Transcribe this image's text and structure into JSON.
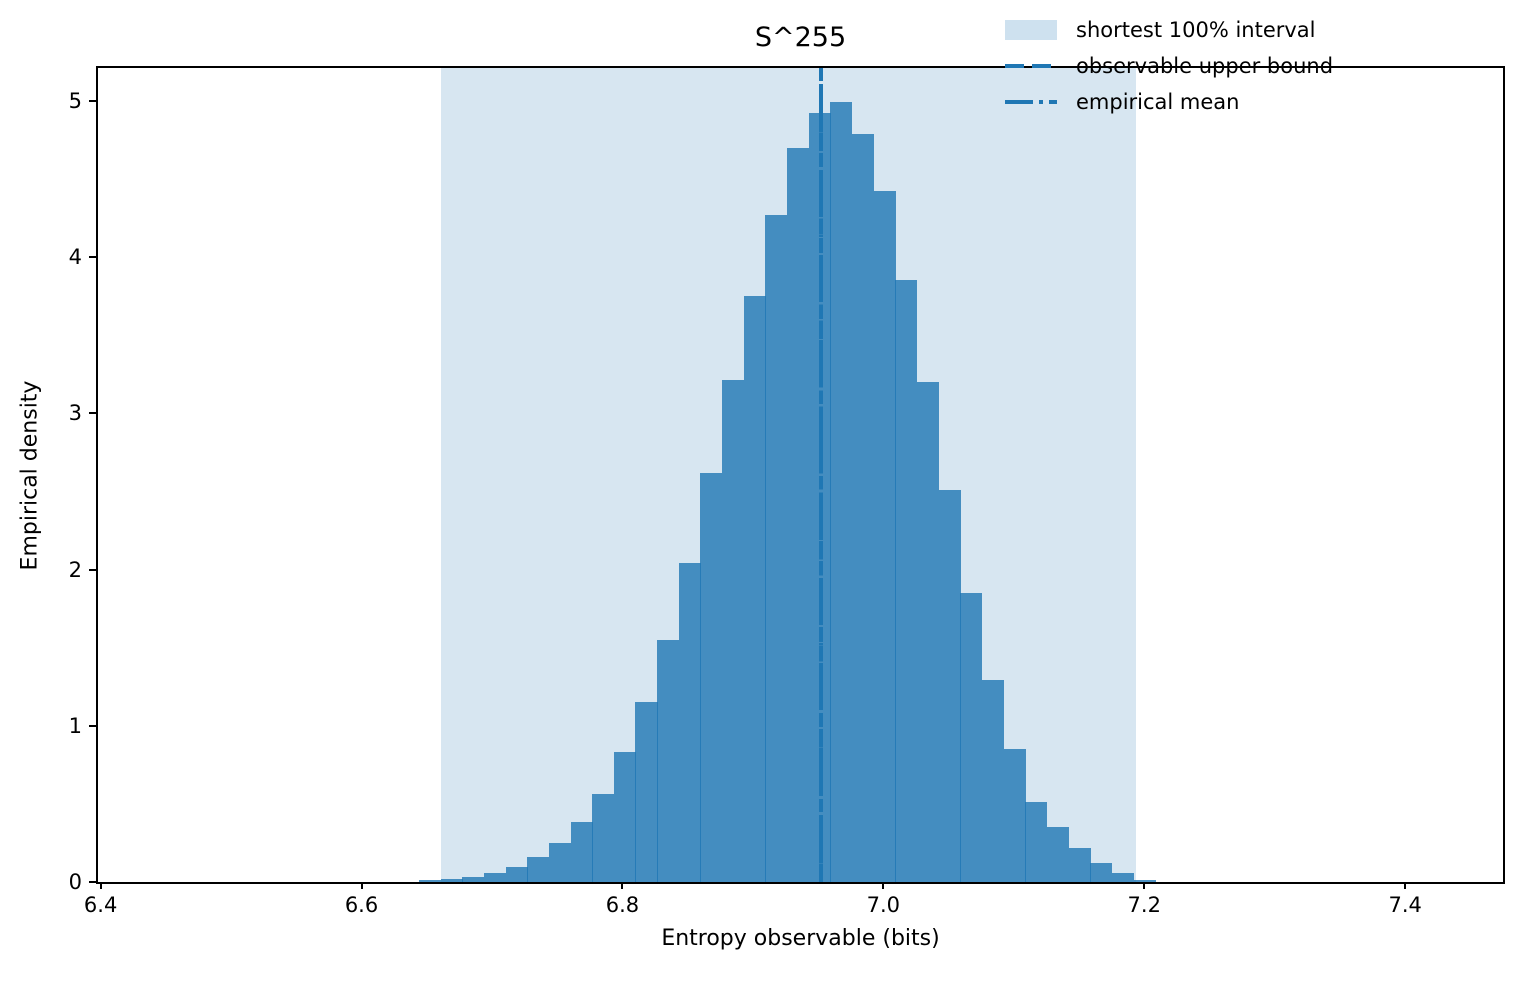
{
  "title": "S^255",
  "axes": {
    "xlabel": "Entropy observable (bits)",
    "ylabel": "Empirical density",
    "x_tick_labels": [
      "6.4",
      "6.6",
      "6.8",
      "7.0",
      "7.2",
      "7.4"
    ],
    "y_tick_labels": [
      "0",
      "1",
      "2",
      "3",
      "4",
      "5"
    ]
  },
  "legend": {
    "items": [
      {
        "label": "shortest 100% interval",
        "swatch": "patch"
      },
      {
        "label": "observable upper bound",
        "swatch": "dashed"
      },
      {
        "label": "empirical mean",
        "swatch": "dashdot"
      }
    ]
  },
  "chart_data": {
    "type": "bar",
    "subtype": "histogram",
    "title": "S^255",
    "xlabel": "Entropy observable (bits)",
    "ylabel": "Empirical density",
    "xlim": [
      6.398,
      7.475
    ],
    "ylim": [
      0,
      5.21
    ],
    "x_ticks": [
      6.4,
      6.6,
      6.8,
      7.0,
      7.2,
      7.4
    ],
    "y_ticks": [
      0,
      1,
      2,
      3,
      4,
      5
    ],
    "grid": false,
    "legend_position": "upper right",
    "histogram": {
      "bin_start": 6.644,
      "bin_width": 0.0166,
      "densities": [
        0.012,
        0.02,
        0.03,
        0.06,
        0.095,
        0.16,
        0.25,
        0.385,
        0.565,
        0.835,
        1.155,
        1.55,
        2.04,
        2.62,
        3.21,
        3.75,
        4.27,
        4.7,
        4.92,
        4.99,
        4.79,
        4.42,
        3.85,
        3.2,
        2.51,
        1.85,
        1.29,
        0.85,
        0.51,
        0.355,
        0.215,
        0.12,
        0.06,
        0.015
      ]
    },
    "shaded_interval": [
      6.661,
      7.194
    ],
    "observable_upper_bound": 6.952,
    "empirical_mean": 6.952,
    "colors": {
      "base_blue": "#1f77b4",
      "bar_alpha": 0.8,
      "shade_alpha": 0.18,
      "text": "#000000"
    }
  }
}
